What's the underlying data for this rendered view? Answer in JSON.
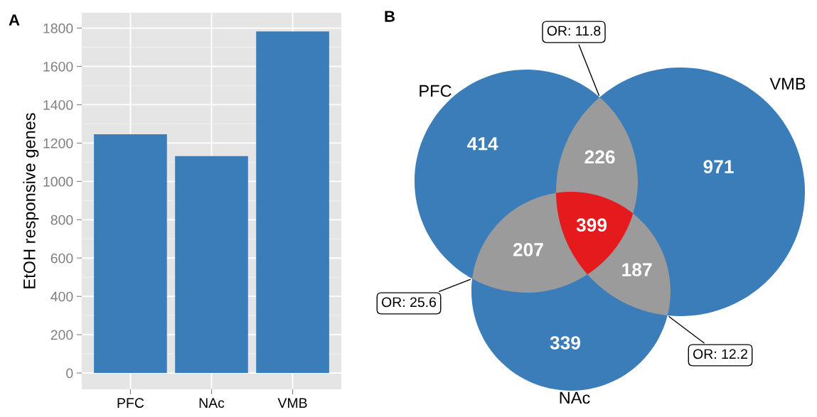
{
  "chart_data": [
    {
      "type": "bar",
      "title": "A",
      "ylabel": "EtOH responsive genes",
      "categories": [
        "PFC",
        "NAc",
        "VMB"
      ],
      "values": [
        1246,
        1132,
        1783
      ],
      "color": "#3a7db8",
      "ylim": [
        -85,
        1880
      ],
      "yticks": [
        0,
        200,
        400,
        600,
        800,
        1000,
        1200,
        1400,
        1600,
        1800
      ],
      "grid": true
    },
    {
      "type": "other",
      "title": "B",
      "annotations": [
        "PFC",
        "VMB",
        "NAc",
        "414",
        "971",
        "339",
        "226",
        "207",
        "187",
        "399",
        "OR: 11.8",
        "OR: 25.6",
        "OR: 12.2"
      ]
    }
  ]
}
